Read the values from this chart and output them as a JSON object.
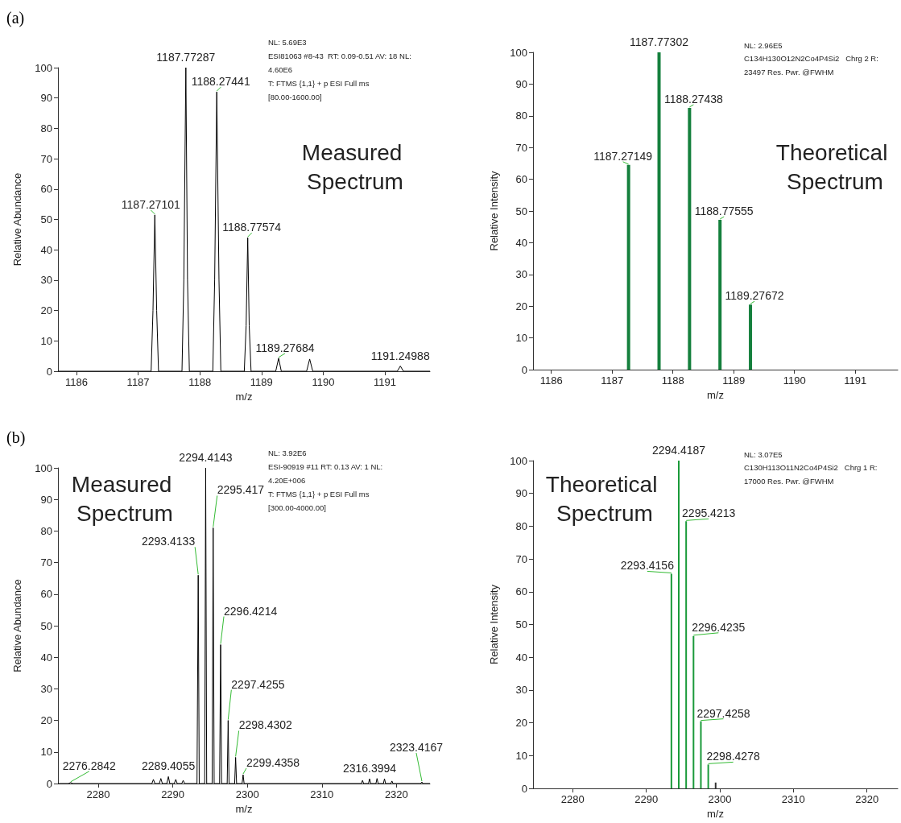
{
  "chart_data": [
    {
      "type": "line",
      "title": "(a)",
      "subtitle": "Measured Spectrum",
      "xlabel": "m/z",
      "ylabel": "Relative Abundance",
      "xlim": [
        1185.7,
        1191.73
      ],
      "xticks": [
        1186,
        1187,
        1188,
        1189,
        1190,
        1191
      ],
      "ylim": [
        0,
        100
      ],
      "yticks": [
        0,
        10,
        20,
        30,
        40,
        50,
        60,
        70,
        80,
        90,
        100
      ],
      "grid": false,
      "marker": "none",
      "series": [
        {
          "color": "#000000",
          "x": [
            1185.7,
            1187.21,
            1187.24,
            1187.27,
            1187.3,
            1187.33,
            1187.71,
            1187.74,
            1187.773,
            1187.8,
            1187.83,
            1188.21,
            1188.24,
            1188.274,
            1188.31,
            1188.34,
            1188.72,
            1188.75,
            1188.776,
            1188.8,
            1188.83,
            1189.23,
            1189.277,
            1189.32,
            1189.73,
            1189.78,
            1189.83,
            1191.2,
            1191.25,
            1191.3,
            1191.73
          ],
          "values": [
            0,
            0,
            20,
            51.5,
            20,
            0,
            0,
            30,
            100,
            30,
            0,
            0,
            30,
            92,
            30,
            0,
            0,
            15,
            44,
            15,
            0,
            0,
            4.3,
            0,
            0,
            4,
            0,
            0,
            1.7,
            0,
            0
          ]
        }
      ],
      "annotations": [
        "NL: 5.69E3",
        "ESI81063 #8-43  RT: 0.09-0.51 AV: 18 NL:",
        "4.60E6",
        "T: FTMS {1,1} + p ESI Full ms",
        "[80.00-1600.00]",
        {
          "text": "1187.27101",
          "x": 1187.27,
          "y": 51.5
        },
        {
          "text": "1187.77287",
          "x": 1187.773,
          "y": 100
        },
        {
          "text": "1188.27441",
          "x": 1188.274,
          "y": 92
        },
        {
          "text": "1188.77574",
          "x": 1188.776,
          "y": 44
        },
        {
          "text": "1189.27684",
          "x": 1189.277,
          "y": 4.3
        },
        {
          "text": "1191.24988",
          "x": 1191.25,
          "y": 1.7
        }
      ]
    },
    {
      "type": "bar",
      "subtitle": "Theoretical Spectrum",
      "xlabel": "m/z",
      "ylabel": "Relative Intensity",
      "xlim": [
        1185.7,
        1191.7
      ],
      "xticks": [
        1186,
        1187,
        1188,
        1189,
        1190,
        1191
      ],
      "ylim": [
        0,
        100
      ],
      "yticks": [
        0,
        10,
        20,
        30,
        40,
        50,
        60,
        70,
        80,
        90,
        100
      ],
      "grid": false,
      "series": [
        {
          "color": "#15803d",
          "x": [
            1187.27149,
            1187.77302,
            1188.27438,
            1188.77555,
            1189.27672
          ],
          "values": [
            64.5,
            100,
            82.5,
            47.2,
            20.5
          ]
        }
      ],
      "annotations": [
        "NL: 2.96E5",
        "C134H130O12N2Co4P4Si2   Chrg 2 R:",
        "23497 Res. Pwr. @FWHM",
        {
          "text": "1187.27149",
          "x": 1187.27149,
          "y": 64.5
        },
        {
          "text": "1187.77302",
          "x": 1187.77302,
          "y": 100
        },
        {
          "text": "1188.27438",
          "x": 1188.27438,
          "y": 82.5
        },
        {
          "text": "1188.77555",
          "x": 1188.77555,
          "y": 47.2
        },
        {
          "text": "1189.27672",
          "x": 1189.27672,
          "y": 20.5
        }
      ]
    },
    {
      "type": "line",
      "title": "(b)",
      "subtitle": "Measured Spectrum",
      "xlabel": "m/z",
      "ylabel": "Relative Abundance",
      "xlim": [
        2274.6,
        2324.5
      ],
      "xticks": [
        2280,
        2290,
        2300,
        2310,
        2320
      ],
      "ylim": [
        0,
        100
      ],
      "yticks": [
        0,
        10,
        20,
        30,
        40,
        50,
        60,
        70,
        80,
        90,
        100
      ],
      "grid": false,
      "marker": "none",
      "series": [
        {
          "color": "#000000",
          "x": [
            2274.6,
            2276.0,
            2276.3,
            2276.6,
            2287.2,
            2287.4,
            2287.6,
            2288.2,
            2288.4,
            2288.6,
            2289.2,
            2289.41,
            2289.6,
            2290.2,
            2290.4,
            2290.6,
            2291.2,
            2291.4,
            2291.6,
            2293.25,
            2293.413,
            2293.55,
            2294.28,
            2294.414,
            2294.55,
            2295.28,
            2295.417,
            2295.55,
            2296.28,
            2296.421,
            2296.55,
            2297.3,
            2297.426,
            2297.55,
            2298.3,
            2298.43,
            2298.56,
            2299.3,
            2299.436,
            2299.57,
            2315.3,
            2315.45,
            2315.6,
            2316.25,
            2316.4,
            2316.55,
            2317.25,
            2317.4,
            2317.55,
            2318.25,
            2318.4,
            2318.55,
            2319.25,
            2319.4,
            2319.55,
            2323.25,
            2323.417,
            2323.55,
            2324.5
          ],
          "values": [
            0,
            0,
            0.3,
            0,
            0,
            1.3,
            0,
            0,
            1.6,
            0,
            0,
            2.2,
            0,
            0,
            1.3,
            0,
            0,
            1,
            0,
            0,
            66,
            0,
            0,
            100,
            0,
            0,
            81,
            0,
            0,
            44,
            0,
            0,
            20,
            0,
            0,
            8.3,
            0,
            0,
            2.8,
            0,
            0,
            1,
            0,
            0,
            1.5,
            0,
            0,
            1.6,
            0,
            0,
            1.5,
            0,
            0,
            0.8,
            0,
            0,
            0.5,
            0,
            0
          ]
        }
      ],
      "annotations": [
        "NL: 3.92E6",
        "ESI-90919 #11 RT: 0.13 AV: 1 NL:",
        "4.20E+006",
        "T: FTMS {1,1} + p ESI Full ms",
        "[300.00-4000.00]",
        {
          "text": "2276.2842",
          "x": 2276.3,
          "y": 0.3
        },
        {
          "text": "2289.4055",
          "x": 2289.41,
          "y": 2.2
        },
        {
          "text": "2293.4133",
          "x": 2293.413,
          "y": 66
        },
        {
          "text": "2294.4143",
          "x": 2294.414,
          "y": 100
        },
        {
          "text": "2295.417",
          "x": 2295.417,
          "y": 81
        },
        {
          "text": "2296.4214",
          "x": 2296.421,
          "y": 44
        },
        {
          "text": "2297.4255",
          "x": 2297.426,
          "y": 20
        },
        {
          "text": "2298.4302",
          "x": 2298.43,
          "y": 8.3
        },
        {
          "text": "2299.4358",
          "x": 2299.436,
          "y": 2.8
        },
        {
          "text": "2316.3994",
          "x": 2316.4,
          "y": 1.5
        },
        {
          "text": "2323.4167",
          "x": 2323.417,
          "y": 0.5
        }
      ]
    },
    {
      "type": "bar",
      "subtitle": "Theoretical Spectrum",
      "xlabel": "m/z",
      "ylabel": "Relative Intensity",
      "xlim": [
        2274.6,
        2324.2
      ],
      "xticks": [
        2280,
        2290,
        2300,
        2310,
        2320
      ],
      "ylim": [
        0,
        100
      ],
      "yticks": [
        0,
        10,
        20,
        30,
        40,
        50,
        60,
        70,
        80,
        90,
        100
      ],
      "grid": false,
      "series": [
        {
          "x": [
            2293.4156,
            2294.4187,
            2295.4213,
            2296.4235,
            2297.4258,
            2298.4278,
            2299.43
          ],
          "values": [
            65.5,
            100,
            81.5,
            46.5,
            20.5,
            7.3,
            1.8
          ],
          "colors": [
            "#1a9a3a",
            "#1a9a3a",
            "#1a9a3a",
            "#1a9a3a",
            "#1a9a3a",
            "#1a9a3a",
            "#333333"
          ]
        }
      ],
      "annotations": [
        "NL: 3.07E5",
        "C130H113O11N2Co4P4Si2   Chrg 1 R:",
        "17000 Res. Pwr. @FWHM",
        {
          "text": "2293.4156",
          "x": 2293.4156,
          "y": 65.5
        },
        {
          "text": "2294.4187",
          "x": 2294.4187,
          "y": 100
        },
        {
          "text": "2295.4213",
          "x": 2295.4213,
          "y": 81.5
        },
        {
          "text": "2296.4235",
          "x": 2296.4235,
          "y": 46.5
        },
        {
          "text": "2297.4258",
          "x": 2297.4258,
          "y": 20.5
        },
        {
          "text": "2298.4278",
          "x": 2298.4278,
          "y": 7.3
        }
      ]
    }
  ]
}
